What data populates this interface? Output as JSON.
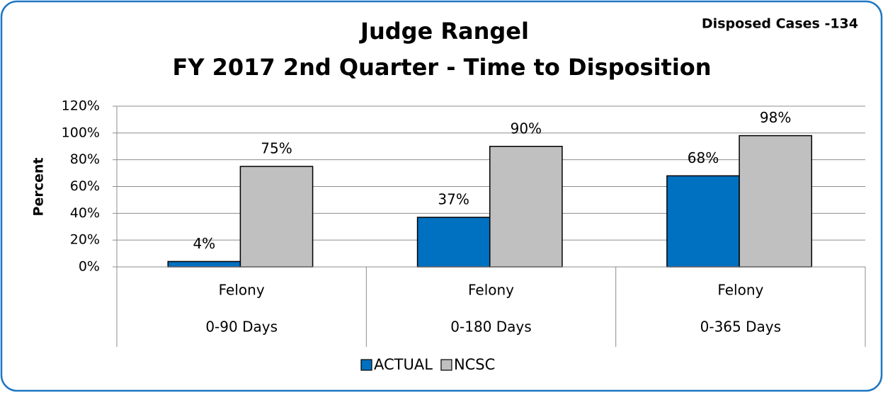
{
  "chart_data": {
    "type": "bar",
    "title": "Judge Rangel",
    "subtitle": "FY 2017 2nd Quarter - Time to Disposition",
    "annotation": "Disposed Cases -134",
    "y_label": "Percent",
    "categories": [
      [
        "Felony",
        "0-90 Days"
      ],
      [
        "Felony",
        "0-180 Days"
      ],
      [
        "Felony",
        "0-365 Days"
      ]
    ],
    "series": [
      {
        "name": "ACTUAL",
        "color": "#0070c0",
        "values": [
          4,
          37,
          68
        ],
        "value_labels": [
          "4%",
          "37%",
          "68%"
        ]
      },
      {
        "name": "NCSC",
        "color": "#c0c0c0",
        "values": [
          75,
          90,
          98
        ],
        "value_labels": [
          "75%",
          "90%",
          "98%"
        ]
      }
    ],
    "ylim": [
      0,
      120
    ],
    "yticks": [
      {
        "value": 0,
        "label": "0%"
      },
      {
        "value": 20,
        "label": "20%"
      },
      {
        "value": 40,
        "label": "40%"
      },
      {
        "value": 60,
        "label": "60%"
      },
      {
        "value": 80,
        "label": "80%"
      },
      {
        "value": 100,
        "label": "100%"
      },
      {
        "value": 120,
        "label": "120%"
      }
    ],
    "grid": true,
    "legend": "bottom"
  }
}
